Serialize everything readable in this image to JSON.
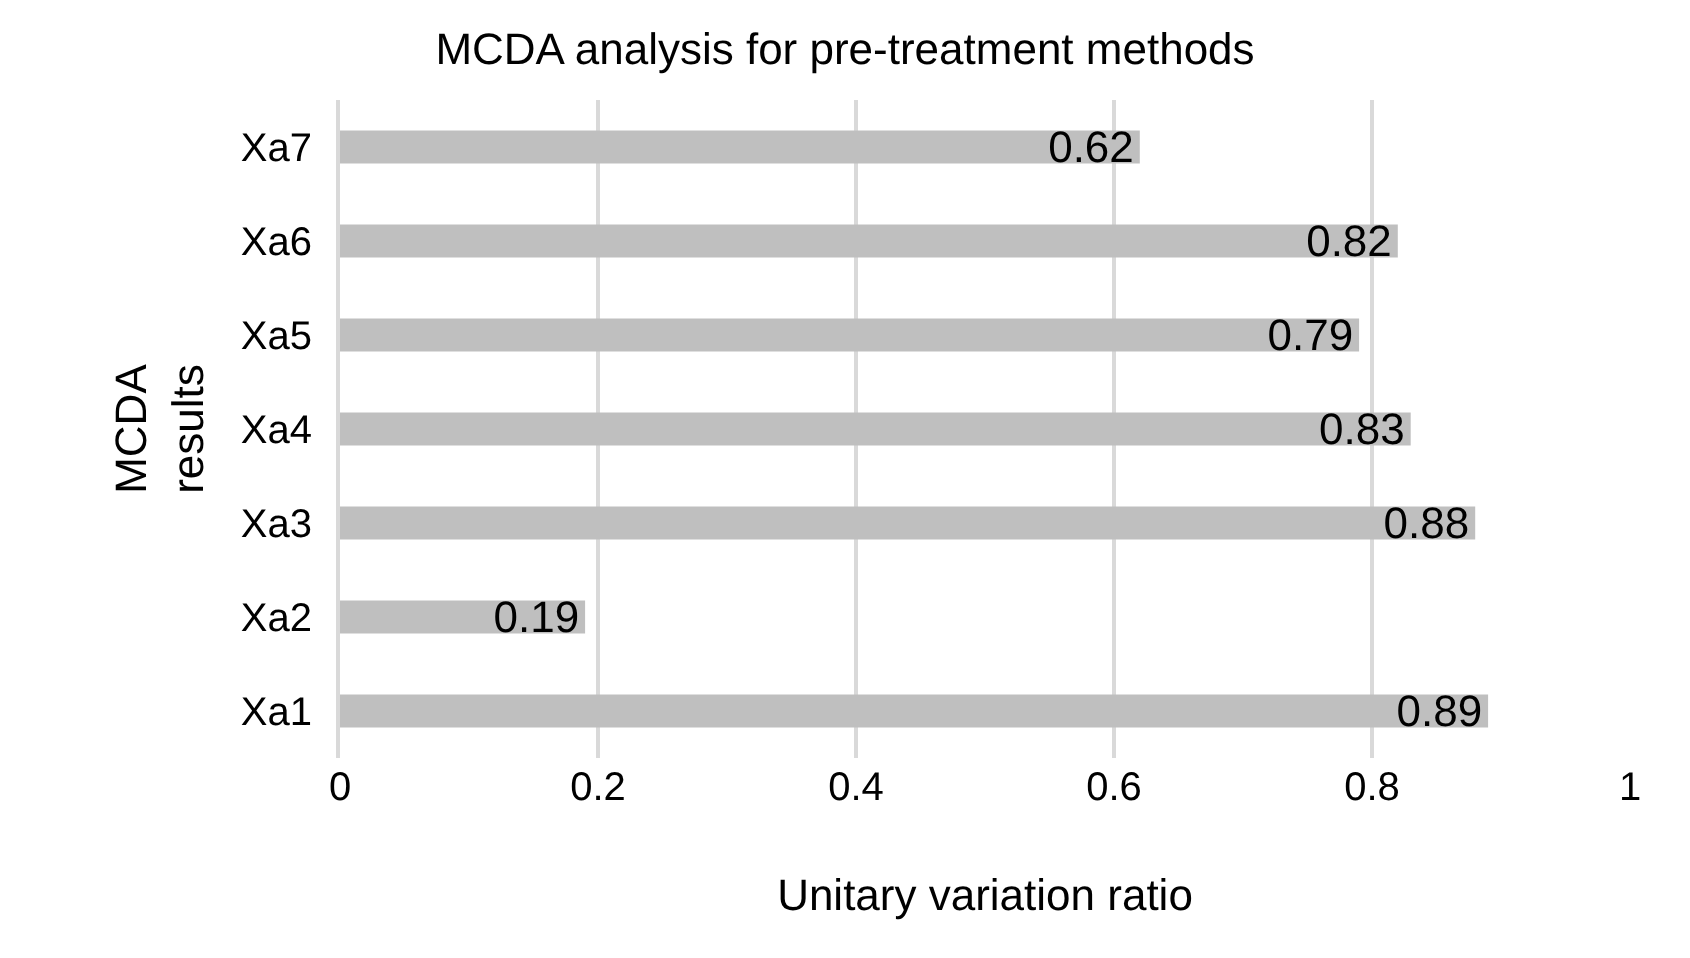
{
  "chart_data": {
    "type": "bar",
    "orientation": "horizontal",
    "title": "MCDA analysis for pre-treatment methods",
    "xlabel": "Unitary variation ratio",
    "ylabel": "MCDA\nresults",
    "categories": [
      "Xa7",
      "Xa6",
      "Xa5",
      "Xa4",
      "Xa3",
      "Xa2",
      "Xa1"
    ],
    "values": [
      0.62,
      0.82,
      0.79,
      0.83,
      0.88,
      0.19,
      0.89
    ],
    "color": "#bfbfbf",
    "xlim": [
      0,
      1
    ],
    "xticks": [
      0,
      0.2,
      0.4,
      0.6,
      0.8,
      1
    ],
    "grid": "x",
    "data_labels": true
  }
}
